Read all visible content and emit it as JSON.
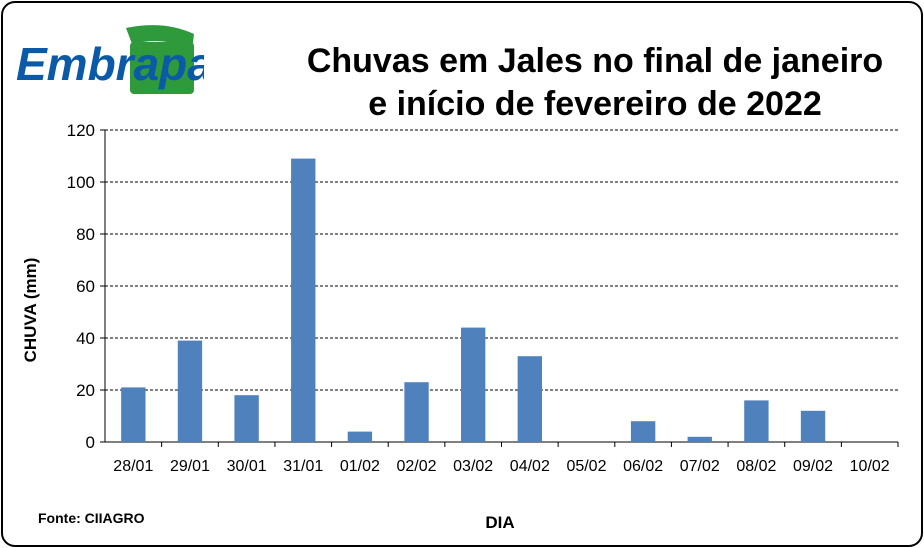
{
  "logo": {
    "text": "Embrapa",
    "colors": {
      "blue": "#0a5aa8",
      "green": "#2e9a3c"
    }
  },
  "source_note": "Fonte: CIIAGRO",
  "chart_data": {
    "type": "bar",
    "title_lines": [
      "Chuvas em Jales no final de janeiro",
      "e início de fevereiro de 2022"
    ],
    "xlabel": "DIA",
    "ylabel": "CHUVA  (mm)",
    "categories": [
      "28/01",
      "29/01",
      "30/01",
      "31/01",
      "01/02",
      "02/02",
      "03/02",
      "04/02",
      "05/02",
      "06/02",
      "07/02",
      "08/02",
      "09/02",
      "10/02"
    ],
    "values": [
      21,
      39,
      18,
      109,
      4,
      23,
      44,
      33,
      0,
      8,
      2,
      16,
      12,
      0
    ],
    "ylim": [
      0,
      120
    ],
    "yticks": [
      0,
      20,
      40,
      60,
      80,
      100,
      120
    ],
    "grid": true,
    "legend": "none",
    "bar_color": "#4f81bd"
  }
}
